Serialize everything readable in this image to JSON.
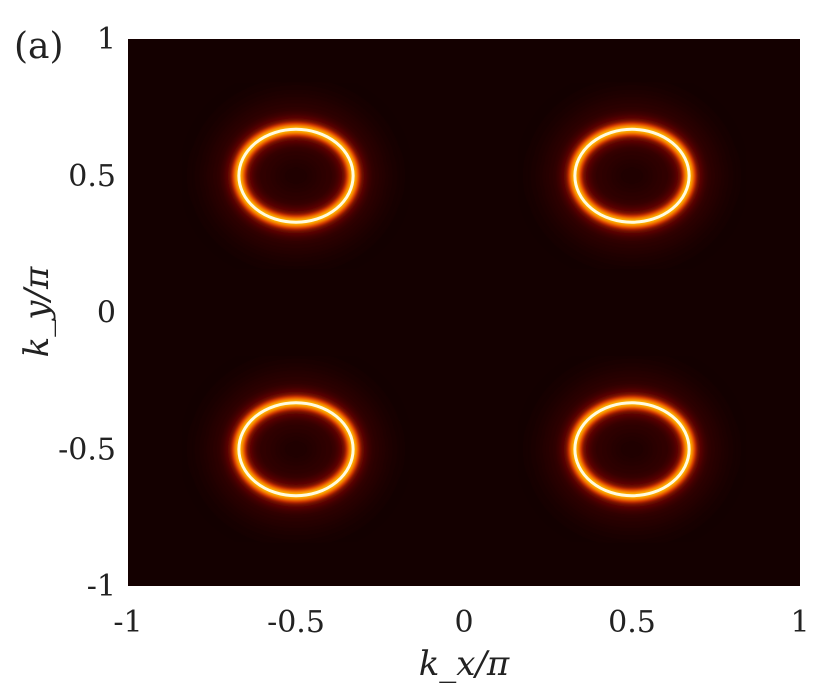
{
  "panel_label": "(a)",
  "chart_data": {
    "type": "heatmap",
    "colormap": "hot",
    "xlabel": "k_x/π",
    "ylabel": "k_y/π",
    "xlim": [
      -1,
      1
    ],
    "ylim": [
      -1,
      1
    ],
    "xticks": [
      -1,
      -0.5,
      0,
      0.5,
      1
    ],
    "yticks": [
      -1,
      -0.5,
      0,
      0.5,
      1
    ],
    "xtick_labels": [
      "-1",
      "-0.5",
      "0",
      "0.5",
      "1"
    ],
    "ytick_labels": [
      "-1",
      "-0.5",
      "0",
      "0.5",
      "1"
    ],
    "rings": [
      {
        "cx": -0.5,
        "cy": 0.5,
        "rx": 0.17,
        "ry": 0.17
      },
      {
        "cx": 0.5,
        "cy": 0.5,
        "rx": 0.17,
        "ry": 0.17
      },
      {
        "cx": -0.5,
        "cy": -0.5,
        "rx": 0.17,
        "ry": 0.17
      },
      {
        "cx": 0.5,
        "cy": -0.5,
        "rx": 0.17,
        "ry": 0.17
      }
    ],
    "background_color": "#140000"
  }
}
